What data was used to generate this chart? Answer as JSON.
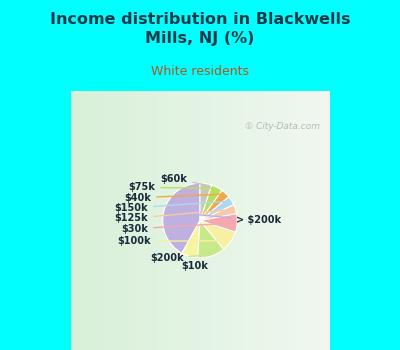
{
  "title": "Income distribution in Blackwells\nMills, NJ (%)",
  "subtitle": "White residents",
  "watermark": "① City-Data.com",
  "labels": [
    "> $200k",
    "$10k",
    "$200k",
    "$100k",
    "$30k",
    "$125k",
    "$150k",
    "$40k",
    "$75k",
    "$60k"
  ],
  "sizes": [
    42,
    7,
    12,
    9,
    8,
    4,
    4,
    4,
    5,
    5
  ],
  "colors": [
    "#c0b0e0",
    "#f5f5a0",
    "#c8e88c",
    "#f8f0a0",
    "#f5a8b0",
    "#f8c8a8",
    "#add8f0",
    "#f0a848",
    "#b8e060",
    "#c8c8b8"
  ],
  "background_top": "#00ffff",
  "background_chart_left": "#e0f2e0",
  "background_chart_right": "#f5f5f5",
  "title_color": "#1a3a4a",
  "subtitle_color": "#b05820",
  "label_color": "#1a2a3a",
  "startangle": 90,
  "figsize": [
    4.0,
    3.5
  ],
  "dpi": 100
}
